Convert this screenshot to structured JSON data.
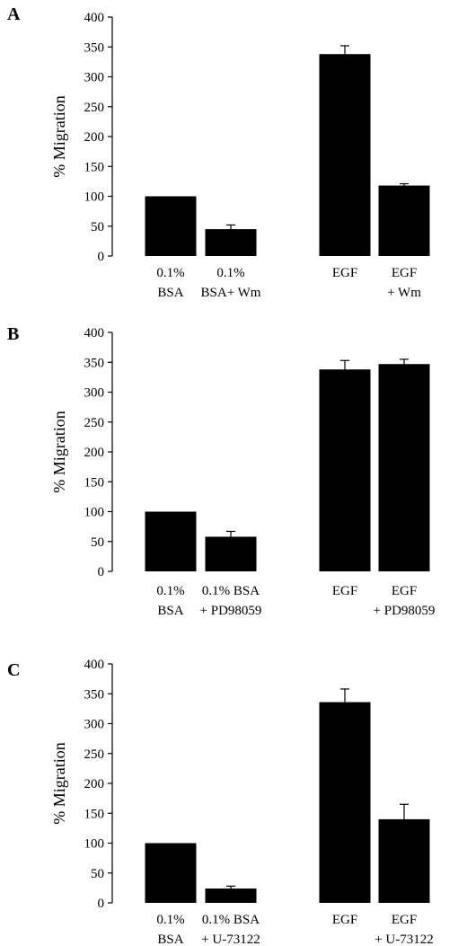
{
  "chart_data": [
    {
      "panel": "A",
      "type": "bar",
      "ylabel": "% Migration",
      "ylim": [
        0,
        400
      ],
      "yticks": [
        0,
        50,
        100,
        150,
        200,
        250,
        300,
        350,
        400
      ],
      "categories": [
        [
          "0.1%",
          "BSA"
        ],
        [
          "0.1%",
          "BSA+ Wm"
        ],
        [
          "EGF"
        ],
        [
          "EGF",
          "+ Wm"
        ]
      ],
      "values": [
        100,
        45,
        338,
        118
      ],
      "errors": [
        0,
        7,
        14,
        3
      ],
      "grid": false
    },
    {
      "panel": "B",
      "type": "bar",
      "ylabel": "% Migration",
      "ylim": [
        0,
        400
      ],
      "yticks": [
        0,
        50,
        100,
        150,
        200,
        250,
        300,
        350,
        400
      ],
      "categories": [
        [
          "0.1%",
          "BSA"
        ],
        [
          "0.1% BSA",
          "+ PD98059"
        ],
        [
          "EGF"
        ],
        [
          "EGF",
          "+ PD98059"
        ]
      ],
      "values": [
        100,
        58,
        338,
        347
      ],
      "errors": [
        0,
        9,
        15,
        8
      ],
      "grid": false
    },
    {
      "panel": "C",
      "type": "bar",
      "ylabel": "% Migration",
      "ylim": [
        0,
        400
      ],
      "yticks": [
        0,
        50,
        100,
        150,
        200,
        250,
        300,
        350,
        400
      ],
      "categories": [
        [
          "0.1%",
          "BSA"
        ],
        [
          "0.1% BSA",
          "+ U-73122"
        ],
        [
          "EGF"
        ],
        [
          "EGF",
          "+ U-73122"
        ]
      ],
      "values": [
        100,
        24,
        336,
        140
      ],
      "errors": [
        0,
        4,
        22,
        25
      ],
      "grid": false
    }
  ]
}
